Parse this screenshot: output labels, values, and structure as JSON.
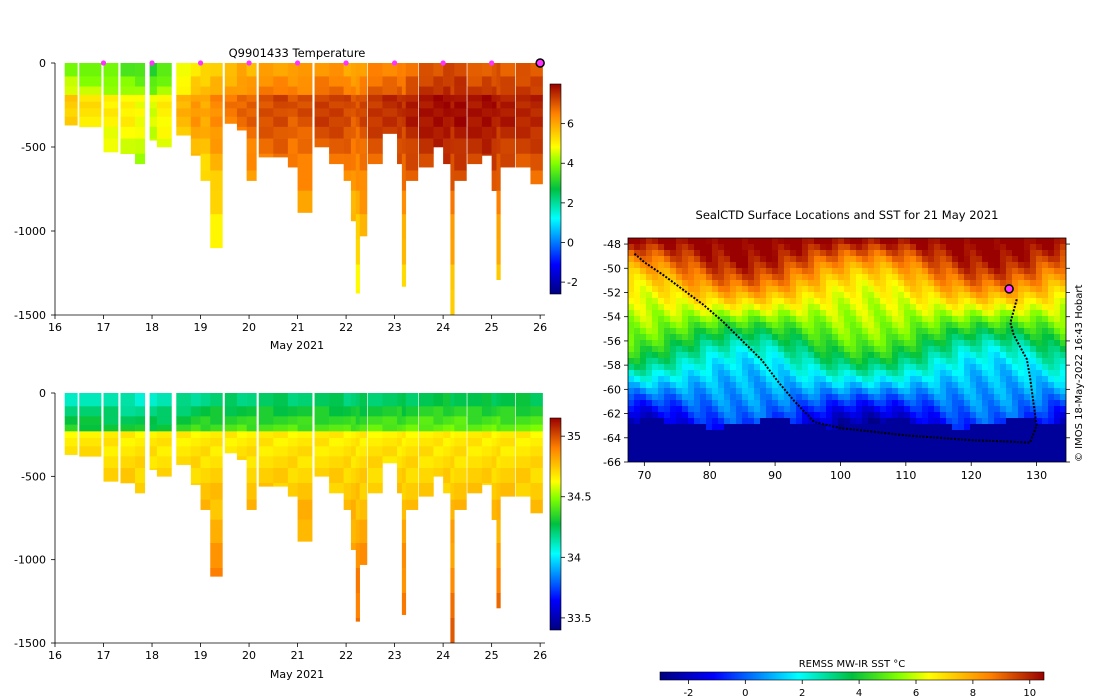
{
  "chart_data": [
    {
      "type": "heatmap",
      "id": "temperature-section",
      "title": "Q9901433  Temperature",
      "xlabel": "May 2021",
      "ylabel": "",
      "x_ticks": [
        16,
        17,
        18,
        19,
        20,
        21,
        22,
        23,
        24,
        25,
        26
      ],
      "y_ticks": [
        0,
        -500,
        -1000,
        -1500
      ],
      "xlim": [
        16,
        26.1
      ],
      "ylim": [
        -1500,
        0
      ],
      "variable": "temperature",
      "colorbar": {
        "ticks": [
          -2,
          0,
          2,
          4,
          6
        ],
        "range": [
          -2.6,
          8
        ]
      },
      "profile_markers_days": [
        17,
        18,
        19,
        20,
        21,
        22,
        23,
        24,
        25
      ],
      "current_marker_day": 26,
      "profiles": [
        {
          "x": 16.2,
          "w": 0.26,
          "depth": 370,
          "surf": 3.8,
          "warm": 5.5
        },
        {
          "x": 16.5,
          "w": 0.45,
          "depth": 380,
          "surf": 3.6,
          "warm": 5.2
        },
        {
          "x": 17.0,
          "w": 0.3,
          "depth": 530,
          "surf": 3.5,
          "warm": 5.0
        },
        {
          "x": 17.35,
          "w": 0.3,
          "depth": 540,
          "surf": 3.3,
          "warm": 5.0
        },
        {
          "x": 17.65,
          "w": 0.2,
          "depth": 600,
          "surf": 3.2,
          "warm": 4.8
        },
        {
          "x": 17.95,
          "w": 0.15,
          "depth": 460,
          "surf": 3.0,
          "warm": 4.6
        },
        {
          "x": 18.1,
          "w": 0.3,
          "depth": 500,
          "surf": 3.4,
          "warm": 5.0
        },
        {
          "x": 18.5,
          "w": 0.3,
          "depth": 430,
          "surf": 4.4,
          "warm": 5.8
        },
        {
          "x": 18.8,
          "w": 0.2,
          "depth": 550,
          "surf": 5.0,
          "warm": 6.2
        },
        {
          "x": 19.0,
          "w": 0.2,
          "depth": 700,
          "surf": 5.2,
          "warm": 6.0
        },
        {
          "x": 19.2,
          "w": 0.25,
          "depth": 1100,
          "surf": 5.5,
          "warm": 6.4
        },
        {
          "x": 19.5,
          "w": 0.25,
          "depth": 360,
          "surf": 5.6,
          "warm": 6.6
        },
        {
          "x": 19.75,
          "w": 0.2,
          "depth": 400,
          "surf": 5.8,
          "warm": 6.8
        },
        {
          "x": 19.95,
          "w": 0.2,
          "depth": 700,
          "surf": 5.6,
          "warm": 6.9
        },
        {
          "x": 20.2,
          "w": 0.3,
          "depth": 560,
          "surf": 5.9,
          "warm": 7.1
        },
        {
          "x": 20.5,
          "w": 0.3,
          "depth": 560,
          "surf": 6.0,
          "warm": 7.2
        },
        {
          "x": 20.8,
          "w": 0.2,
          "depth": 620,
          "surf": 6.0,
          "warm": 7.0
        },
        {
          "x": 21.0,
          "w": 0.3,
          "depth": 890,
          "surf": 5.9,
          "warm": 7.1
        },
        {
          "x": 21.35,
          "w": 0.3,
          "depth": 500,
          "surf": 6.1,
          "warm": 7.3
        },
        {
          "x": 21.65,
          "w": 0.3,
          "depth": 600,
          "surf": 6.1,
          "warm": 7.3
        },
        {
          "x": 21.95,
          "w": 0.15,
          "depth": 700,
          "surf": 5.9,
          "warm": 7.2
        },
        {
          "x": 22.1,
          "w": 0.1,
          "depth": 940,
          "surf": 5.9,
          "warm": 7.0
        },
        {
          "x": 22.2,
          "w": 0.08,
          "depth": 1370,
          "surf": 5.8,
          "warm": 7.0
        },
        {
          "x": 22.28,
          "w": 0.15,
          "depth": 1030,
          "surf": 6.0,
          "warm": 7.2
        },
        {
          "x": 22.45,
          "w": 0.3,
          "depth": 600,
          "surf": 6.3,
          "warm": 7.4
        },
        {
          "x": 22.75,
          "w": 0.3,
          "depth": 420,
          "surf": 6.4,
          "warm": 7.5
        },
        {
          "x": 23.05,
          "w": 0.15,
          "depth": 600,
          "surf": 6.4,
          "warm": 7.5
        },
        {
          "x": 23.15,
          "w": 0.08,
          "depth": 1330,
          "surf": 6.2,
          "warm": 7.4
        },
        {
          "x": 23.23,
          "w": 0.25,
          "depth": 700,
          "surf": 6.6,
          "warm": 7.7
        },
        {
          "x": 23.5,
          "w": 0.3,
          "depth": 620,
          "surf": 6.9,
          "warm": 7.8
        },
        {
          "x": 23.8,
          "w": 0.2,
          "depth": 500,
          "surf": 7.0,
          "warm": 7.9
        },
        {
          "x": 24.0,
          "w": 0.15,
          "depth": 600,
          "surf": 7.2,
          "warm": 7.9
        },
        {
          "x": 24.15,
          "w": 0.08,
          "depth": 1500,
          "surf": 7.0,
          "warm": 7.7
        },
        {
          "x": 24.23,
          "w": 0.25,
          "depth": 700,
          "surf": 7.1,
          "warm": 7.9
        },
        {
          "x": 24.5,
          "w": 0.3,
          "depth": 600,
          "surf": 6.7,
          "warm": 7.8
        },
        {
          "x": 24.8,
          "w": 0.2,
          "depth": 550,
          "surf": 6.9,
          "warm": 7.9
        },
        {
          "x": 25.0,
          "w": 0.1,
          "depth": 760,
          "surf": 6.9,
          "warm": 7.8
        },
        {
          "x": 25.1,
          "w": 0.08,
          "depth": 1290,
          "surf": 6.9,
          "warm": 7.6
        },
        {
          "x": 25.18,
          "w": 0.3,
          "depth": 620,
          "surf": 6.8,
          "warm": 7.7
        },
        {
          "x": 25.5,
          "w": 0.3,
          "depth": 620,
          "surf": 6.9,
          "warm": 7.6
        },
        {
          "x": 25.8,
          "w": 0.25,
          "depth": 720,
          "surf": 7.0,
          "warm": 7.6
        }
      ]
    },
    {
      "type": "heatmap",
      "id": "salinity-section",
      "title": "",
      "xlabel": "May 2021",
      "x_ticks": [
        16,
        17,
        18,
        19,
        20,
        21,
        22,
        23,
        24,
        25,
        26
      ],
      "y_ticks": [
        0,
        -500,
        -1000,
        -1500
      ],
      "xlim": [
        16,
        26.1
      ],
      "ylim": [
        -1500,
        0
      ],
      "variable": "salinity",
      "colorbar": {
        "ticks": [
          33.5,
          34,
          34.5,
          35
        ],
        "range": [
          33.4,
          35.15
        ]
      },
      "surface_salinity": 34.1,
      "deep_salinity": 34.75
    },
    {
      "type": "heatmap",
      "id": "sst-map",
      "title": "SealCTD Surface Locations and SST for 21 May 2021",
      "x_ticks": [
        70,
        80,
        90,
        100,
        110,
        120,
        130
      ],
      "y_ticks": [
        -48,
        -50,
        -52,
        -54,
        -56,
        -58,
        -60,
        -62,
        -64,
        -66
      ],
      "xlim": [
        67.5,
        134.5
      ],
      "ylim": [
        -66,
        -47.5
      ],
      "colorbar": {
        "label": "REMSS MW-IR SST °C",
        "ticks": [
          -2,
          0,
          2,
          4,
          6,
          8,
          10
        ],
        "range": [
          -3,
          10.5
        ]
      },
      "credit": "© IMOS 18-May-2022 16:43 Hobart",
      "track": [
        [
          68.5,
          -48.8
        ],
        [
          70,
          -49.5
        ],
        [
          73,
          -50.6
        ],
        [
          76,
          -51.8
        ],
        [
          79,
          -53
        ],
        [
          82,
          -54.4
        ],
        [
          85,
          -56
        ],
        [
          88,
          -57.6
        ],
        [
          90.5,
          -59.4
        ],
        [
          93,
          -61
        ],
        [
          96,
          -62.7
        ],
        [
          100,
          -63.2
        ],
        [
          105,
          -63.5
        ],
        [
          110,
          -63.8
        ],
        [
          115,
          -64
        ],
        [
          120,
          -64.2
        ],
        [
          125,
          -64.3
        ],
        [
          129,
          -64.4
        ],
        [
          130,
          -63
        ],
        [
          129.5,
          -61
        ],
        [
          129,
          -59
        ],
        [
          128.5,
          -57.5
        ],
        [
          127.5,
          -56.5
        ],
        [
          126.5,
          -55.5
        ],
        [
          126,
          -54.5
        ],
        [
          126.5,
          -53.5
        ],
        [
          127,
          -52.5
        ]
      ],
      "current_position": [
        125.8,
        -51.7
      ],
      "ice_edge_lat": -62.6
    }
  ]
}
